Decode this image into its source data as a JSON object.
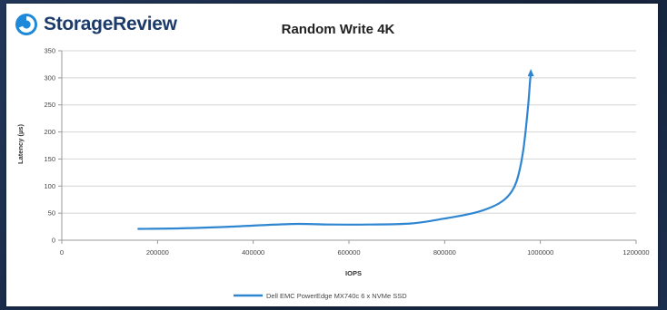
{
  "brand": {
    "name": "StorageReview",
    "icon": "storagereview-logo-icon",
    "color": "#1c3b6b",
    "accent": "#1e88d9"
  },
  "chart_data": {
    "type": "line",
    "title": "Random Write 4K",
    "xlabel": "IOPS",
    "ylabel": "Latency (µs)",
    "xlim": [
      0,
      1200000
    ],
    "ylim": [
      0,
      350
    ],
    "x_ticks": [
      0,
      200000,
      400000,
      600000,
      800000,
      1000000,
      1200000
    ],
    "y_ticks": [
      0,
      50,
      100,
      150,
      200,
      250,
      300,
      350
    ],
    "grid": true,
    "legend_position": "bottom",
    "series": [
      {
        "name": "Dell EMC PowerEdge MX740c 6 x NVMe SSD",
        "color": "#2e86d1",
        "x": [
          160000,
          250000,
          350000,
          480000,
          560000,
          640000,
          730000,
          800000,
          860000,
          900000,
          925000,
          940000,
          950000,
          958000,
          964000,
          969000,
          973000,
          976000,
          978000,
          980000
        ],
        "y": [
          21,
          22,
          25,
          30,
          29,
          29,
          31,
          40,
          50,
          62,
          75,
          90,
          108,
          135,
          165,
          200,
          235,
          265,
          290,
          308
        ]
      }
    ]
  }
}
